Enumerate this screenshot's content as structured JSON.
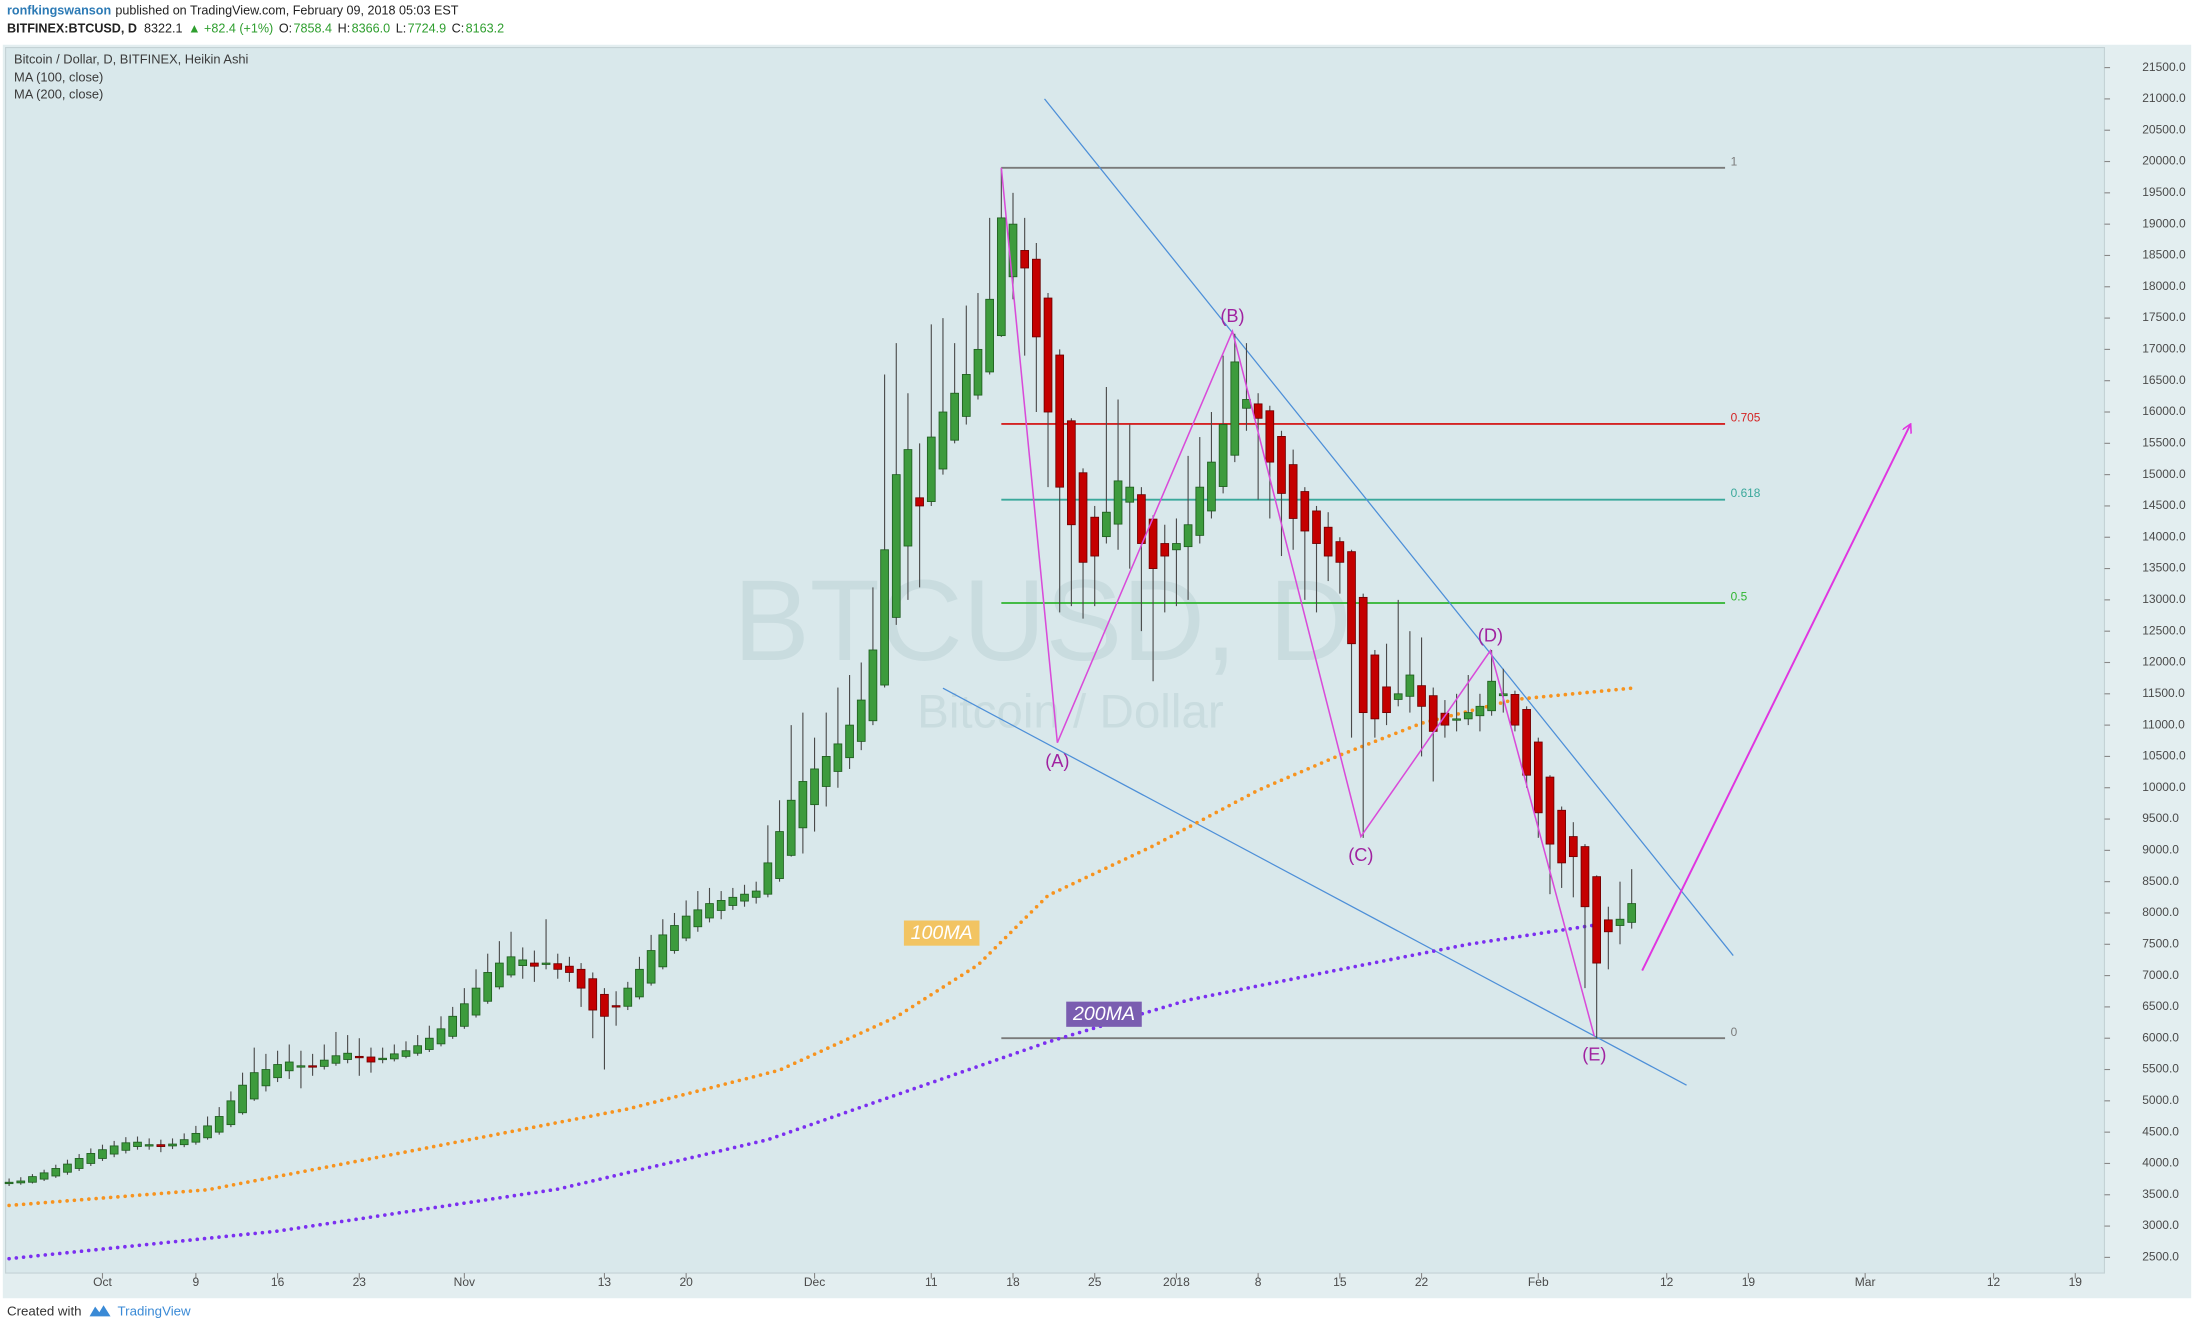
{
  "header": {
    "author": "ronfkingswanson",
    "published": "published on TradingView.com, February 09, 2018 05:03 EST",
    "symbol": "BITFINEX:BTCUSD, D",
    "last": "8322.1",
    "change": "▲ +82.4 (+1%)",
    "ohlc": [
      [
        "O:",
        "7858.4"
      ],
      [
        "H:",
        "8366.0"
      ],
      [
        "L:",
        "7724.9"
      ],
      [
        "C:",
        "8163.2"
      ]
    ]
  },
  "footer": {
    "created": "Created with",
    "brand": "TradingView"
  },
  "chart_data": {
    "type": "candlestick",
    "title": "Bitcoin / Dollar, D, BITFINEX, Heikin Ashi",
    "watermark": "BTCUSD, D",
    "watermark_sub": "Bitcoin / Dollar",
    "up_color": "#3d9b3d",
    "down_color": "#c40000",
    "grid": false,
    "xlim": [
      -0.3,
      179.5
    ],
    "ylim": [
      2250,
      21820
    ],
    "xticks": [
      {
        "value": 8,
        "label": "Oct"
      },
      {
        "value": 16,
        "label": "9"
      },
      {
        "value": 23,
        "label": "16"
      },
      {
        "value": 30,
        "label": "23"
      },
      {
        "value": 39,
        "label": "Nov"
      },
      {
        "value": 51,
        "label": "13"
      },
      {
        "value": 58,
        "label": "20"
      },
      {
        "value": 69,
        "label": "Dec"
      },
      {
        "value": 79,
        "label": "11"
      },
      {
        "value": 86,
        "label": "18"
      },
      {
        "value": 93,
        "label": "25"
      },
      {
        "value": 100,
        "label": "2018"
      },
      {
        "value": 107,
        "label": "8"
      },
      {
        "value": 114,
        "label": "15"
      },
      {
        "value": 121,
        "label": "22"
      },
      {
        "value": 131,
        "label": "Feb"
      },
      {
        "value": 142,
        "label": "12"
      },
      {
        "value": 149,
        "label": "19"
      },
      {
        "value": 159,
        "label": "Mar"
      },
      {
        "value": 170,
        "label": "12"
      },
      {
        "value": 177,
        "label": "19"
      }
    ],
    "yticks": [
      {
        "value": 2500,
        "label": "2500.0"
      },
      {
        "value": 3000,
        "label": "3000.0"
      },
      {
        "value": 3500,
        "label": "3500.0"
      },
      {
        "value": 4000,
        "label": "4000.0"
      },
      {
        "value": 4500,
        "label": "4500.0"
      },
      {
        "value": 5000,
        "label": "5000.0"
      },
      {
        "value": 5500,
        "label": "5500.0"
      },
      {
        "value": 6000,
        "label": "6000.0"
      },
      {
        "value": 6500,
        "label": "6500.0"
      },
      {
        "value": 7000,
        "label": "7000.0"
      },
      {
        "value": 7500,
        "label": "7500.0"
      },
      {
        "value": 8000,
        "label": "8000.0"
      },
      {
        "value": 8500,
        "label": "8500.0"
      },
      {
        "value": 9000,
        "label": "9000.0"
      },
      {
        "value": 9500,
        "label": "9500.0"
      },
      {
        "value": 10000,
        "label": "10000.0"
      },
      {
        "value": 10500,
        "label": "10500.0"
      },
      {
        "value": 11000,
        "label": "11000.0"
      },
      {
        "value": 11500,
        "label": "11500.0"
      },
      {
        "value": 12000,
        "label": "12000.0"
      },
      {
        "value": 12500,
        "label": "12500.0"
      },
      {
        "value": 13000,
        "label": "13000.0"
      },
      {
        "value": 13500,
        "label": "13500.0"
      },
      {
        "value": 14000,
        "label": "14000.0"
      },
      {
        "value": 14500,
        "label": "14500.0"
      },
      {
        "value": 15000,
        "label": "15000.0"
      },
      {
        "value": 15500,
        "label": "15500.0"
      },
      {
        "value": 16000,
        "label": "16000.0"
      },
      {
        "value": 16500,
        "label": "16500.0"
      },
      {
        "value": 17000,
        "label": "17000.0"
      },
      {
        "value": 17500,
        "label": "17500.0"
      },
      {
        "value": 18000,
        "label": "18000.0"
      },
      {
        "value": 18500,
        "label": "18500.0"
      },
      {
        "value": 19000,
        "label": "19000.0"
      },
      {
        "value": 19500,
        "label": "19500.0"
      },
      {
        "value": 20000,
        "label": "20000.0"
      },
      {
        "value": 20500,
        "label": "20500.0"
      },
      {
        "value": 21000,
        "label": "21000.0"
      },
      {
        "value": 21500,
        "label": "21500.0"
      }
    ],
    "ohlc": [
      [
        3680,
        3760,
        3640,
        3700
      ],
      [
        3690,
        3780,
        3660,
        3720
      ],
      [
        3700,
        3830,
        3680,
        3790
      ],
      [
        3750,
        3900,
        3720,
        3850
      ],
      [
        3800,
        3980,
        3770,
        3920
      ],
      [
        3860,
        4060,
        3820,
        3990
      ],
      [
        3920,
        4150,
        3880,
        4080
      ],
      [
        4000,
        4240,
        3960,
        4160
      ],
      [
        4080,
        4300,
        4040,
        4220
      ],
      [
        4150,
        4360,
        4100,
        4280
      ],
      [
        4210,
        4420,
        4160,
        4330
      ],
      [
        4270,
        4430,
        4220,
        4340
      ],
      [
        4300,
        4400,
        4220,
        4300
      ],
      [
        4300,
        4380,
        4180,
        4270
      ],
      [
        4280,
        4400,
        4230,
        4310
      ],
      [
        4300,
        4480,
        4260,
        4380
      ],
      [
        4340,
        4600,
        4300,
        4480
      ],
      [
        4410,
        4750,
        4380,
        4600
      ],
      [
        4500,
        4900,
        4460,
        4750
      ],
      [
        4620,
        5150,
        4580,
        5000
      ],
      [
        4810,
        5450,
        4780,
        5250
      ],
      [
        5030,
        5850,
        5000,
        5450
      ],
      [
        5240,
        5750,
        5150,
        5500
      ],
      [
        5370,
        5800,
        5300,
        5580
      ],
      [
        5480,
        5900,
        5350,
        5620
      ],
      [
        5550,
        5800,
        5200,
        5560
      ],
      [
        5560,
        5750,
        5400,
        5550
      ],
      [
        5550,
        5900,
        5500,
        5650
      ],
      [
        5600,
        6100,
        5560,
        5720
      ],
      [
        5660,
        6050,
        5600,
        5760
      ],
      [
        5710,
        6000,
        5400,
        5700
      ],
      [
        5700,
        5850,
        5450,
        5620
      ],
      [
        5660,
        5850,
        5600,
        5680
      ],
      [
        5670,
        5900,
        5630,
        5750
      ],
      [
        5710,
        5950,
        5680,
        5800
      ],
      [
        5760,
        6050,
        5720,
        5880
      ],
      [
        5820,
        6200,
        5780,
        6000
      ],
      [
        5910,
        6350,
        5870,
        6150
      ],
      [
        6030,
        6500,
        5990,
        6350
      ],
      [
        6190,
        6800,
        6150,
        6550
      ],
      [
        6370,
        7100,
        6330,
        6800
      ],
      [
        6590,
        7350,
        6550,
        7050
      ],
      [
        6820,
        7550,
        6780,
        7200
      ],
      [
        7010,
        7700,
        6970,
        7300
      ],
      [
        7160,
        7450,
        6950,
        7250
      ],
      [
        7200,
        7400,
        6900,
        7150
      ],
      [
        7180,
        7900,
        7100,
        7200
      ],
      [
        7190,
        7350,
        6950,
        7100
      ],
      [
        7150,
        7300,
        6900,
        7050
      ],
      [
        7100,
        7200,
        6500,
        6800
      ],
      [
        6950,
        7050,
        6000,
        6450
      ],
      [
        6700,
        6800,
        5500,
        6350
      ],
      [
        6520,
        6750,
        6200,
        6500
      ],
      [
        6510,
        6900,
        6450,
        6800
      ],
      [
        6660,
        7300,
        6620,
        7100
      ],
      [
        6880,
        7650,
        6840,
        7400
      ],
      [
        7140,
        7900,
        7100,
        7650
      ],
      [
        7400,
        8000,
        7350,
        7800
      ],
      [
        7600,
        8200,
        7550,
        7950
      ],
      [
        7780,
        8350,
        7700,
        8050
      ],
      [
        7920,
        8400,
        7850,
        8150
      ],
      [
        8040,
        8350,
        7900,
        8200
      ],
      [
        8120,
        8400,
        8050,
        8250
      ],
      [
        8190,
        8450,
        8100,
        8300
      ],
      [
        8250,
        8500,
        8150,
        8350
      ],
      [
        8300,
        9400,
        8250,
        8800
      ],
      [
        8550,
        9800,
        8500,
        9300
      ],
      [
        8920,
        11000,
        8900,
        9800
      ],
      [
        9360,
        11200,
        8950,
        10100
      ],
      [
        9730,
        10800,
        9300,
        10300
      ],
      [
        10020,
        11200,
        9700,
        10500
      ],
      [
        10260,
        11600,
        10000,
        10700
      ],
      [
        10480,
        11800,
        10300,
        11000
      ],
      [
        10740,
        12000,
        10600,
        11400
      ],
      [
        11070,
        13200,
        11000,
        12200
      ],
      [
        11640,
        16600,
        11600,
        13800
      ],
      [
        12720,
        17100,
        12600,
        15000
      ],
      [
        13860,
        16300,
        13000,
        15400
      ],
      [
        14630,
        15500,
        13200,
        14500
      ],
      [
        14570,
        17400,
        14500,
        15600
      ],
      [
        15090,
        17500,
        15000,
        16000
      ],
      [
        15550,
        17100,
        15500,
        16300
      ],
      [
        15930,
        17700,
        15800,
        16600
      ],
      [
        16270,
        17900,
        16200,
        17000
      ],
      [
        16640,
        19100,
        16600,
        17800
      ],
      [
        17220,
        19900,
        17200,
        19100
      ],
      [
        18160,
        19500,
        17800,
        19000
      ],
      [
        18580,
        19100,
        16900,
        18300
      ],
      [
        18440,
        18700,
        16000,
        17200
      ],
      [
        17820,
        17900,
        14800,
        16000
      ],
      [
        16910,
        17000,
        12800,
        14800
      ],
      [
        15860,
        15900,
        12900,
        14200
      ],
      [
        15030,
        15100,
        12700,
        13600
      ],
      [
        14320,
        14500,
        12900,
        13700
      ],
      [
        14010,
        16400,
        13900,
        14400
      ],
      [
        14210,
        16200,
        13800,
        14900
      ],
      [
        14560,
        15800,
        13500,
        14800
      ],
      [
        14680,
        14800,
        12500,
        13900
      ],
      [
        14290,
        14350,
        11700,
        13500
      ],
      [
        13900,
        14200,
        12800,
        13700
      ],
      [
        13800,
        14300,
        12900,
        13900
      ],
      [
        13850,
        15300,
        13000,
        14200
      ],
      [
        14030,
        15600,
        13900,
        14800
      ],
      [
        14420,
        16000,
        14300,
        15200
      ],
      [
        14810,
        16900,
        14700,
        15800
      ],
      [
        15310,
        17250,
        15200,
        16800
      ],
      [
        16060,
        17100,
        15700,
        16200
      ],
      [
        16130,
        16300,
        14600,
        15900
      ],
      [
        16020,
        16100,
        14300,
        15200
      ],
      [
        15610,
        15700,
        13700,
        14700
      ],
      [
        15160,
        15400,
        13800,
        14300
      ],
      [
        14730,
        14800,
        13000,
        14100
      ],
      [
        14420,
        14500,
        12800,
        13900
      ],
      [
        14160,
        14400,
        13300,
        13700
      ],
      [
        13930,
        14000,
        13100,
        13600
      ],
      [
        13770,
        13800,
        10800,
        12300
      ],
      [
        13040,
        13100,
        9200,
        11200
      ],
      [
        12120,
        12200,
        10800,
        11100
      ],
      [
        11610,
        12300,
        11000,
        11200
      ],
      [
        11410,
        13000,
        11300,
        11500
      ],
      [
        11460,
        12500,
        11200,
        11800
      ],
      [
        11630,
        12400,
        10500,
        11300
      ],
      [
        11470,
        11600,
        10100,
        10900
      ],
      [
        11190,
        11400,
        10800,
        11000
      ],
      [
        11100,
        11500,
        10900,
        11100
      ],
      [
        11100,
        11800,
        11000,
        11200
      ],
      [
        11150,
        11500,
        10900,
        11300
      ],
      [
        11230,
        12200,
        11150,
        11700
      ],
      [
        11470,
        11900,
        11200,
        11500
      ],
      [
        11490,
        11550,
        10900,
        11000
      ],
      [
        11250,
        11300,
        10000,
        10200
      ],
      [
        10730,
        10800,
        9200,
        9600
      ],
      [
        10170,
        10200,
        8300,
        9100
      ],
      [
        9640,
        9700,
        8400,
        8800
      ],
      [
        9220,
        9450,
        8250,
        8900
      ],
      [
        9060,
        9100,
        6800,
        8100
      ],
      [
        8580,
        8600,
        6000,
        7200
      ],
      [
        7890,
        8100,
        7100,
        7700
      ],
      [
        7800,
        8500,
        7500,
        7900
      ],
      [
        7850,
        8700,
        7750,
        8150
      ]
    ],
    "series": [
      {
        "name": "MA (100, close)",
        "tag": "100MA",
        "color": "#f7931e",
        "tag_color": "#f2c462",
        "x": [
          0,
          17,
          35,
          53,
          66,
          76,
          83,
          89,
          98,
          107,
          114,
          121,
          129,
          139
        ],
        "values": [
          3330,
          3580,
          4220,
          4870,
          5490,
          6340,
          7170,
          8280,
          9070,
          9960,
          10520,
          11030,
          11410,
          11590
        ]
      },
      {
        "name": "MA (200, close)",
        "tag": "200MA",
        "color": "#7b2ff0",
        "tag_color": "#7a5db0",
        "x": [
          0,
          23,
          47,
          65,
          77,
          89,
          101,
          113,
          125,
          137
        ],
        "values": [
          2480,
          2920,
          3590,
          4380,
          5160,
          5940,
          6610,
          7060,
          7500,
          7840
        ]
      }
    ],
    "fib_x": [
      85,
      147
    ],
    "fib": [
      {
        "label": "1",
        "value": 19900,
        "color": "#7a7a7a"
      },
      {
        "label": "0.705",
        "value": 15810,
        "color": "#d42323"
      },
      {
        "label": "0.618",
        "value": 14600,
        "color": "#3aa89b"
      },
      {
        "label": "0.5",
        "value": 12950,
        "color": "#2fb52f"
      },
      {
        "label": "0",
        "value": 6000,
        "color": "#7a7a7a"
      }
    ],
    "trendlines": [
      {
        "x": [
          88.7,
          147.7
        ],
        "y": [
          21000,
          7320
        ],
        "color": "#4d8fd8"
      },
      {
        "x": [
          80,
          143.7
        ],
        "y": [
          11590,
          5250
        ],
        "color": "#4d8fd8"
      }
    ],
    "wave": {
      "color": "#d94bd9",
      "label_color": "#a022a0",
      "x": [
        85,
        89.8,
        104.8,
        115.8,
        126.9,
        135.8
      ],
      "y": [
        19900,
        10720,
        17290,
        9220,
        12190,
        6030
      ],
      "labels": [
        null,
        "(A)",
        "(B)",
        "(C)",
        "(D)",
        "(E)"
      ]
    },
    "arrow": {
      "color": "#e035e0",
      "x": [
        139.9,
        162.9
      ],
      "y": [
        7080,
        15810
      ]
    }
  }
}
